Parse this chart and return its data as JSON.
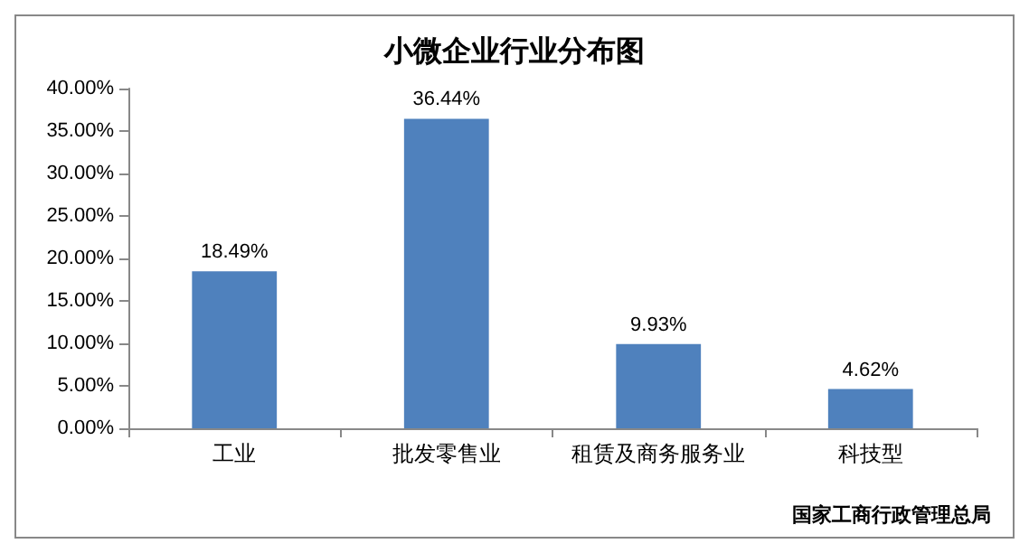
{
  "chart_data": {
    "type": "bar",
    "title": "小微企业行业分布图",
    "categories": [
      "工业",
      "批发零售业",
      "租赁及商务服务业",
      "科技型"
    ],
    "values": [
      18.49,
      36.44,
      9.93,
      4.62
    ],
    "value_labels": [
      "18.49%",
      "36.44%",
      "9.93%",
      "4.62%"
    ],
    "color": "#4f81bd",
    "ylim": [
      0,
      40
    ],
    "yticks": [
      {
        "value": 0,
        "label": "0.00%"
      },
      {
        "value": 5,
        "label": "5.00%"
      },
      {
        "value": 10,
        "label": "10.00%"
      },
      {
        "value": 15,
        "label": "15.00%"
      },
      {
        "value": 20,
        "label": "20.00%"
      },
      {
        "value": 25,
        "label": "25.00%"
      },
      {
        "value": 30,
        "label": "30.00%"
      },
      {
        "value": 35,
        "label": "35.00%"
      },
      {
        "value": 40,
        "label": "40.00%"
      }
    ],
    "grid": false,
    "annotations": [
      "国家工商行政管理总局"
    ]
  }
}
